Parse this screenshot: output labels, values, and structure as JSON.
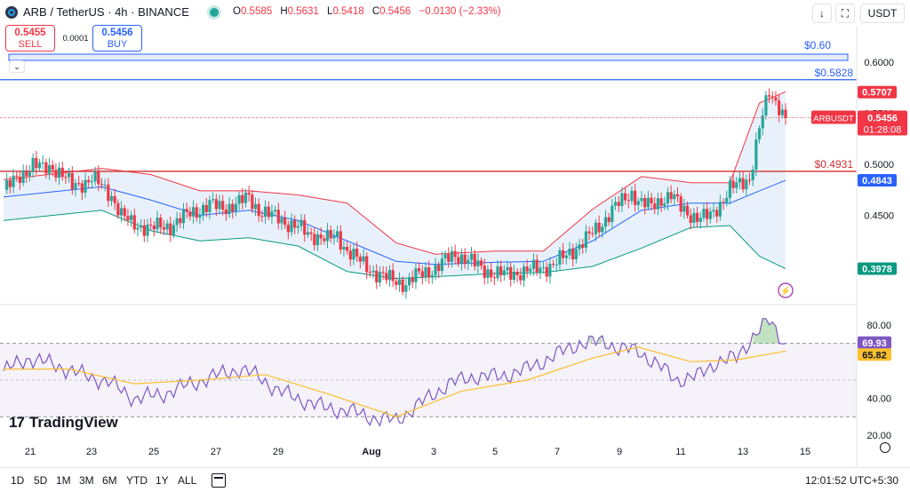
{
  "header": {
    "symbol_title": "ARB / TetherUS · 4h · BINANCE",
    "ohlc": [
      {
        "label": "O",
        "value": "0.5585"
      },
      {
        "label": "H",
        "value": "0.5631"
      },
      {
        "label": "L",
        "value": "0.5418"
      },
      {
        "label": "C",
        "value": "0.5456"
      }
    ],
    "change": "−0.0130 (−2.33%)",
    "currency_button": "USDT"
  },
  "trade": {
    "sell_price": "0.5455",
    "sell_label": "SELL",
    "spread": "0.0001",
    "buy_price": "0.5456",
    "buy_label": "BUY"
  },
  "colors": {
    "up": "#26a69a",
    "down": "#f23645",
    "basis": "#2962ff",
    "upper_band": "#f23645",
    "lower_band": "#089981",
    "band_fill": "#e8f1fb",
    "rsi": "#7e57c2",
    "rsi_ma": "#fbc02d",
    "level_blue": "#2962ff",
    "level_red": "#d32f2f"
  },
  "chart_data": [
    {
      "type": "candlestick",
      "title": "ARB / TetherUS · 4h · BINANCE",
      "ylim": [
        0.36,
        0.63
      ],
      "x_ticks": [
        "21",
        "23",
        "25",
        "27",
        "29",
        "Aug",
        "3",
        "5",
        "7",
        "9",
        "11",
        "13",
        "15"
      ],
      "y_ticks": [
        "0.6000",
        "0.5500",
        "0.5000",
        "0.4500"
      ],
      "series": [
        {
          "name": "ARBUSDT",
          "current": "0.5456",
          "countdown": "01:28:08"
        }
      ],
      "price_points": [
        [
          0,
          0.475
        ],
        [
          3,
          0.482
        ],
        [
          6,
          0.492
        ],
        [
          9,
          0.5
        ],
        [
          12,
          0.495
        ],
        [
          15,
          0.498
        ],
        [
          18,
          0.49
        ],
        [
          21,
          0.478
        ],
        [
          24,
          0.482
        ],
        [
          27,
          0.486
        ],
        [
          30,
          0.478
        ],
        [
          33,
          0.47
        ],
        [
          36,
          0.45
        ],
        [
          39,
          0.442
        ],
        [
          42,
          0.44
        ],
        [
          45,
          0.437
        ],
        [
          48,
          0.439
        ],
        [
          51,
          0.44
        ],
        [
          54,
          0.446
        ],
        [
          57,
          0.452
        ],
        [
          60,
          0.456
        ],
        [
          63,
          0.46
        ],
        [
          66,
          0.458
        ],
        [
          69,
          0.459
        ],
        [
          72,
          0.462
        ],
        [
          75,
          0.468
        ],
        [
          78,
          0.455
        ],
        [
          81,
          0.45
        ],
        [
          84,
          0.448
        ],
        [
          87,
          0.442
        ],
        [
          90,
          0.438
        ],
        [
          93,
          0.432
        ],
        [
          96,
          0.43
        ],
        [
          99,
          0.426
        ],
        [
          102,
          0.43
        ],
        [
          105,
          0.416
        ],
        [
          108,
          0.407
        ],
        [
          111,
          0.4
        ],
        [
          114,
          0.393
        ],
        [
          117,
          0.388
        ],
        [
          120,
          0.386
        ],
        [
          123,
          0.383
        ],
        [
          126,
          0.39
        ],
        [
          129,
          0.395
        ],
        [
          132,
          0.398
        ],
        [
          135,
          0.405
        ],
        [
          138,
          0.412
        ],
        [
          141,
          0.408
        ],
        [
          144,
          0.402
        ],
        [
          147,
          0.397
        ],
        [
          150,
          0.393
        ],
        [
          153,
          0.392
        ],
        [
          156,
          0.394
        ],
        [
          159,
          0.395
        ],
        [
          162,
          0.397
        ],
        [
          165,
          0.399
        ],
        [
          168,
          0.402
        ],
        [
          171,
          0.408
        ],
        [
          174,
          0.416
        ],
        [
          177,
          0.424
        ],
        [
          180,
          0.432
        ],
        [
          183,
          0.443
        ],
        [
          186,
          0.456
        ],
        [
          189,
          0.463
        ],
        [
          192,
          0.472
        ],
        [
          195,
          0.462
        ],
        [
          198,
          0.458
        ],
        [
          201,
          0.466
        ],
        [
          204,
          0.47
        ],
        [
          207,
          0.457
        ],
        [
          210,
          0.451
        ],
        [
          213,
          0.447
        ],
        [
          216,
          0.449
        ],
        [
          219,
          0.462
        ],
        [
          222,
          0.476
        ],
        [
          225,
          0.48
        ],
        [
          228,
          0.487
        ],
        [
          231,
          0.535
        ],
        [
          234,
          0.57
        ],
        [
          237,
          0.558
        ],
        [
          239,
          0.5456
        ]
      ],
      "bollinger": {
        "upper": [
          [
            0,
            0.485
          ],
          [
            30,
            0.496
          ],
          [
            45,
            0.49
          ],
          [
            60,
            0.474
          ],
          [
            75,
            0.474
          ],
          [
            90,
            0.47
          ],
          [
            105,
            0.462
          ],
          [
            120,
            0.423
          ],
          [
            132,
            0.412
          ],
          [
            150,
            0.415
          ],
          [
            165,
            0.415
          ],
          [
            180,
            0.456
          ],
          [
            195,
            0.488
          ],
          [
            210,
            0.482
          ],
          [
            222,
            0.482
          ],
          [
            231,
            0.56
          ],
          [
            239,
            0.571
          ]
        ],
        "basis": [
          [
            0,
            0.468
          ],
          [
            30,
            0.478
          ],
          [
            45,
            0.465
          ],
          [
            60,
            0.45
          ],
          [
            75,
            0.455
          ],
          [
            90,
            0.445
          ],
          [
            105,
            0.425
          ],
          [
            120,
            0.405
          ],
          [
            132,
            0.402
          ],
          [
            150,
            0.404
          ],
          [
            165,
            0.405
          ],
          [
            180,
            0.425
          ],
          [
            195,
            0.455
          ],
          [
            210,
            0.462
          ],
          [
            222,
            0.462
          ],
          [
            231,
            0.474
          ],
          [
            239,
            0.4843
          ]
        ],
        "lower": [
          [
            0,
            0.445
          ],
          [
            30,
            0.455
          ],
          [
            45,
            0.435
          ],
          [
            60,
            0.425
          ],
          [
            75,
            0.428
          ],
          [
            90,
            0.42
          ],
          [
            105,
            0.395
          ],
          [
            120,
            0.388
          ],
          [
            132,
            0.39
          ],
          [
            150,
            0.393
          ],
          [
            165,
            0.394
          ],
          [
            180,
            0.4
          ],
          [
            195,
            0.418
          ],
          [
            210,
            0.438
          ],
          [
            222,
            0.44
          ],
          [
            231,
            0.41
          ],
          [
            239,
            0.3978
          ]
        ]
      },
      "levels": [
        {
          "price": 0.6,
          "label": "$0.60",
          "color": "#2962ff",
          "kind": "band"
        },
        {
          "price": 0.5828,
          "label": "$0.5828",
          "color": "#2962ff",
          "kind": "line"
        },
        {
          "price": 0.4931,
          "label": "$0.4931",
          "color": "#d32f2f",
          "kind": "line"
        }
      ],
      "axis_tags": [
        {
          "price": 0.5707,
          "text": "0.5707",
          "color": "#f23645"
        },
        {
          "price": 0.4843,
          "text": "0.4843",
          "color": "#2962ff"
        },
        {
          "price": 0.3978,
          "text": "0.3978",
          "color": "#089981"
        }
      ]
    },
    {
      "type": "line",
      "ylim": [
        17,
        88
      ],
      "y_ticks": [
        "80.00",
        "40.00",
        "20.00"
      ],
      "bands": [
        30,
        70
      ],
      "series": [
        {
          "name": "RSI",
          "value_label": "69.93",
          "points": [
            [
              0,
              55
            ],
            [
              8,
              62
            ],
            [
              16,
              58
            ],
            [
              24,
              53
            ],
            [
              32,
              49
            ],
            [
              40,
              40
            ],
            [
              48,
              42
            ],
            [
              56,
              47
            ],
            [
              64,
              52
            ],
            [
              72,
              56
            ],
            [
              78,
              52
            ],
            [
              84,
              44
            ],
            [
              90,
              40
            ],
            [
              98,
              35
            ],
            [
              106,
              33
            ],
            [
              114,
              29
            ],
            [
              120,
              28
            ],
            [
              128,
              38
            ],
            [
              136,
              48
            ],
            [
              144,
              52
            ],
            [
              152,
              52
            ],
            [
              160,
              56
            ],
            [
              168,
              63
            ],
            [
              176,
              70
            ],
            [
              184,
              71
            ],
            [
              188,
              67
            ],
            [
              194,
              66
            ],
            [
              200,
              58
            ],
            [
              206,
              50
            ],
            [
              212,
              52
            ],
            [
              218,
              60
            ],
            [
              224,
              62
            ],
            [
              230,
              76
            ],
            [
              234,
              82
            ],
            [
              239,
              69.93
            ]
          ]
        },
        {
          "name": "RSI-based MA",
          "value_label": "65.82",
          "points": [
            [
              0,
              56
            ],
            [
              20,
              56
            ],
            [
              40,
              48
            ],
            [
              60,
              50
            ],
            [
              80,
              53
            ],
            [
              100,
              42
            ],
            [
              120,
              30
            ],
            [
              140,
              44
            ],
            [
              160,
              50
            ],
            [
              180,
              62
            ],
            [
              194,
              68
            ],
            [
              210,
              60
            ],
            [
              224,
              61
            ],
            [
              239,
              65.82
            ]
          ]
        }
      ]
    }
  ],
  "timeframes": [
    "1D",
    "5D",
    "1M",
    "3M",
    "6M",
    "YTD",
    "1Y",
    "ALL"
  ],
  "clock": "12:01:52 UTC+5:30",
  "branding": "TradingView",
  "branding_mark": "17"
}
